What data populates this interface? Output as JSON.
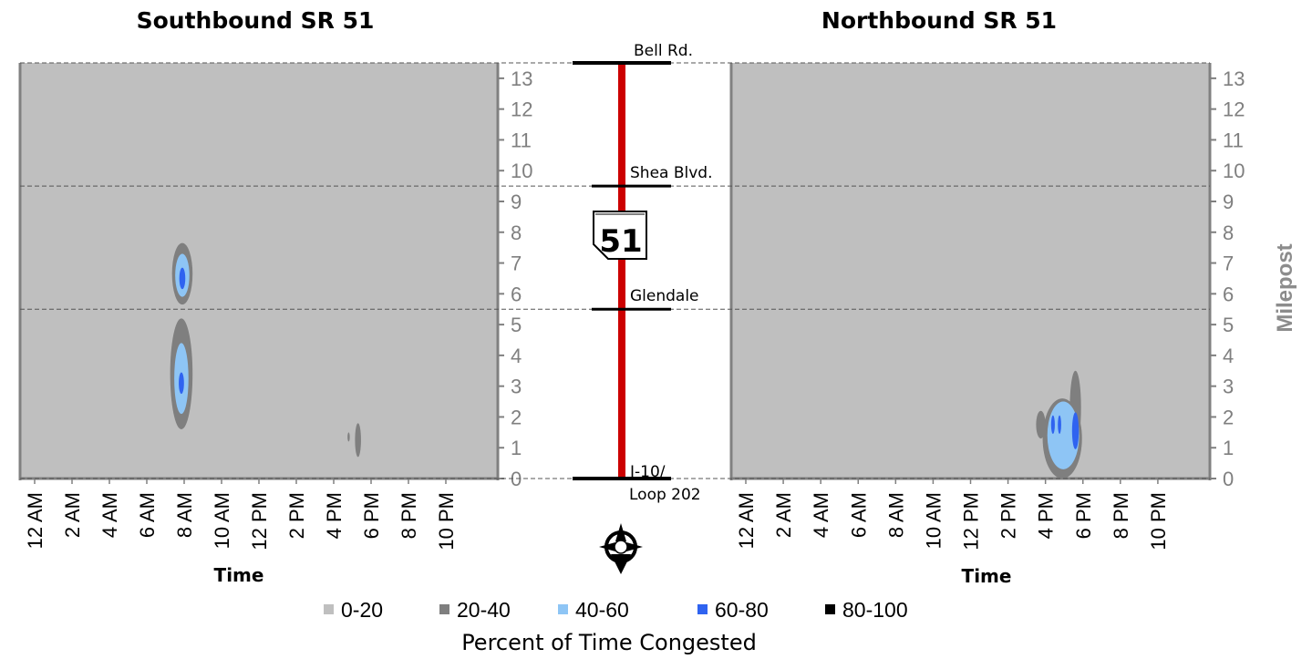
{
  "chart_data": {
    "type": "heatmap",
    "colors": {
      "background": "#bfbfbf",
      "levels": [
        "#bfbfbf",
        "#7f7f7f",
        "#8ec5f5",
        "#2f63f0",
        "#000000"
      ],
      "route_line": "#cc0000",
      "axis": "#808080"
    },
    "ylabel": "Milepost",
    "ylim": [
      0,
      13.5
    ],
    "y_ticks": [
      0,
      1,
      2,
      3,
      4,
      5,
      6,
      7,
      8,
      9,
      10,
      11,
      12,
      13
    ],
    "x_range_hours": [
      0,
      24
    ],
    "x_ticks": [
      {
        "hour": 0,
        "label": "12 AM"
      },
      {
        "hour": 2,
        "label": "2 AM"
      },
      {
        "hour": 4,
        "label": "4 AM"
      },
      {
        "hour": 6,
        "label": "6 AM"
      },
      {
        "hour": 8,
        "label": "8 AM"
      },
      {
        "hour": 10,
        "label": "10 AM"
      },
      {
        "hour": 12,
        "label": "12 PM"
      },
      {
        "hour": 14,
        "label": "2 PM"
      },
      {
        "hour": 16,
        "label": "4 PM"
      },
      {
        "hour": 18,
        "label": "6 PM"
      },
      {
        "hour": 20,
        "label": "8 PM"
      },
      {
        "hour": 22,
        "label": "10 PM"
      }
    ],
    "landmarks": [
      {
        "name": "Bell Rd.",
        "milepost": 13.5
      },
      {
        "name": "Shea Blvd.",
        "milepost": 9.5
      },
      {
        "name": "Glendale",
        "milepost": 5.5
      },
      {
        "name": "I-10/",
        "name2": "Loop 202",
        "milepost": 0
      }
    ],
    "legend": {
      "title": "Percent of Time Congested",
      "entries": [
        {
          "label": "0-20",
          "color": "#bfbfbf"
        },
        {
          "label": "20-40",
          "color": "#7f7f7f"
        },
        {
          "label": "40-60",
          "color": "#8ec5f5"
        },
        {
          "label": "60-80",
          "color": "#2f63f0"
        },
        {
          "label": "80-100",
          "color": "#000000"
        }
      ]
    },
    "panels": [
      {
        "title": "Southbound SR 51",
        "xlabel": "Time",
        "hotspots": [
          {
            "level": 1,
            "hour": 7.9,
            "mp": 6.65,
            "dh": 0.55,
            "dmp": 1.0
          },
          {
            "level": 2,
            "hour": 7.9,
            "mp": 6.6,
            "dh": 0.38,
            "dmp": 0.7
          },
          {
            "level": 3,
            "hour": 7.9,
            "mp": 6.5,
            "dh": 0.16,
            "dmp": 0.35
          },
          {
            "level": 1,
            "hour": 7.85,
            "mp": 3.4,
            "dh": 0.6,
            "dmp": 1.8
          },
          {
            "level": 2,
            "hour": 7.85,
            "mp": 3.25,
            "dh": 0.38,
            "dmp": 1.15
          },
          {
            "level": 3,
            "hour": 7.85,
            "mp": 3.1,
            "dh": 0.14,
            "dmp": 0.35
          },
          {
            "level": 1,
            "hour": 17.3,
            "mp": 1.25,
            "dh": 0.16,
            "dmp": 0.55
          },
          {
            "level": 1,
            "hour": 16.8,
            "mp": 1.35,
            "dh": 0.06,
            "dmp": 0.15
          }
        ]
      },
      {
        "title": "Northbound SR 51",
        "xlabel": "Time",
        "hotspots": [
          {
            "level": 1,
            "hour": 16.9,
            "mp": 1.3,
            "dh": 1.05,
            "dmp": 1.3
          },
          {
            "level": 1,
            "hour": 17.6,
            "mp": 2.3,
            "dh": 0.3,
            "dmp": 1.2
          },
          {
            "level": 1,
            "hour": 15.75,
            "mp": 1.75,
            "dh": 0.25,
            "dmp": 0.45
          },
          {
            "level": 2,
            "hour": 16.95,
            "mp": 1.4,
            "dh": 0.85,
            "dmp": 1.1
          },
          {
            "level": 3,
            "hour": 16.4,
            "mp": 1.75,
            "dh": 0.1,
            "dmp": 0.3
          },
          {
            "level": 3,
            "hour": 16.75,
            "mp": 1.75,
            "dh": 0.09,
            "dmp": 0.3
          },
          {
            "level": 3,
            "hour": 17.6,
            "mp": 1.55,
            "dh": 0.18,
            "dmp": 0.6
          }
        ]
      }
    ]
  }
}
